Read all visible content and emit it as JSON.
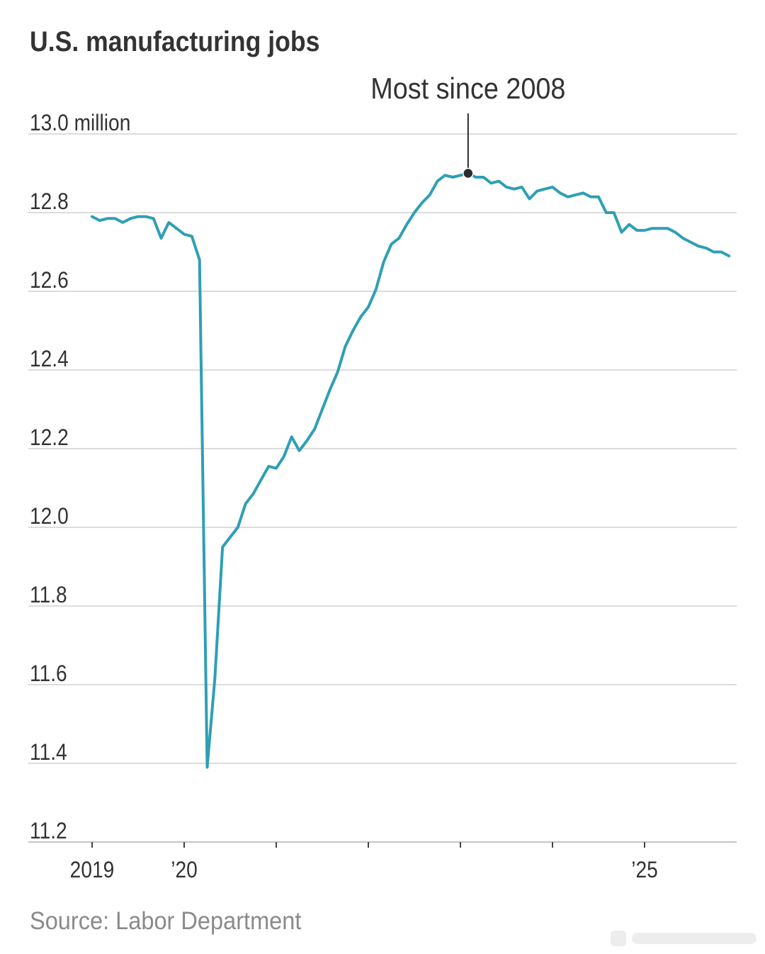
{
  "chart_data": {
    "type": "line",
    "title": "U.S. manufacturing jobs",
    "source": "Source: Labor Department",
    "grid": "horizontal",
    "ylim": [
      11.2,
      13.0
    ],
    "y_ticks": [
      {
        "value": 13.0,
        "label": "13.0 million"
      },
      {
        "value": 12.8,
        "label": "12.8"
      },
      {
        "value": 12.6,
        "label": "12.6"
      },
      {
        "value": 12.4,
        "label": "12.4"
      },
      {
        "value": 12.2,
        "label": "12.2"
      },
      {
        "value": 12.0,
        "label": "12.0"
      },
      {
        "value": 11.8,
        "label": "11.8"
      },
      {
        "value": 11.6,
        "label": "11.6"
      },
      {
        "value": 11.4,
        "label": "11.4"
      },
      {
        "value": 11.2,
        "label": "11.2"
      }
    ],
    "x_ticks": [
      {
        "value": "2019-01",
        "label": "2019"
      },
      {
        "value": "2020-01",
        "label": "’20"
      },
      {
        "value": "2021-01"
      },
      {
        "value": "2022-01"
      },
      {
        "value": "2023-01"
      },
      {
        "value": "2024-01"
      },
      {
        "value": "2025-01",
        "label": "’25"
      }
    ],
    "x": [
      "2019-01",
      "2019-02",
      "2019-03",
      "2019-04",
      "2019-05",
      "2019-06",
      "2019-07",
      "2019-08",
      "2019-09",
      "2019-10",
      "2019-11",
      "2019-12",
      "2020-01",
      "2020-02",
      "2020-03",
      "2020-04",
      "2020-05",
      "2020-06",
      "2020-07",
      "2020-08",
      "2020-09",
      "2020-10",
      "2020-11",
      "2020-12",
      "2021-01",
      "2021-02",
      "2021-03",
      "2021-04",
      "2021-05",
      "2021-06",
      "2021-07",
      "2021-08",
      "2021-09",
      "2021-10",
      "2021-11",
      "2021-12",
      "2022-01",
      "2022-02",
      "2022-03",
      "2022-04",
      "2022-05",
      "2022-06",
      "2022-07",
      "2022-08",
      "2022-09",
      "2022-10",
      "2022-11",
      "2022-12",
      "2023-01",
      "2023-02",
      "2023-03",
      "2023-04",
      "2023-05",
      "2023-06",
      "2023-07",
      "2023-08",
      "2023-09",
      "2023-10",
      "2023-11",
      "2023-12",
      "2024-01",
      "2024-02",
      "2024-03",
      "2024-04",
      "2024-05",
      "2024-06",
      "2024-07",
      "2024-08",
      "2024-09",
      "2024-10",
      "2024-11",
      "2024-12",
      "2025-01",
      "2025-02",
      "2025-03",
      "2025-04",
      "2025-05",
      "2025-06",
      "2025-07",
      "2025-08",
      "2025-09",
      "2025-10",
      "2025-11",
      "2025-12"
    ],
    "y": [
      12.79,
      12.78,
      12.785,
      12.785,
      12.775,
      12.785,
      12.79,
      12.79,
      12.785,
      12.735,
      12.775,
      12.76,
      12.745,
      12.74,
      12.68,
      11.39,
      11.615,
      11.95,
      11.975,
      12.0,
      12.06,
      12.085,
      12.12,
      12.155,
      12.15,
      12.18,
      12.23,
      12.195,
      12.22,
      12.25,
      12.3,
      12.35,
      12.395,
      12.46,
      12.5,
      12.535,
      12.56,
      12.605,
      12.675,
      12.72,
      12.735,
      12.77,
      12.8,
      12.825,
      12.845,
      12.88,
      12.895,
      12.89,
      12.895,
      12.9,
      12.89,
      12.89,
      12.875,
      12.88,
      12.865,
      12.86,
      12.865,
      12.835,
      12.855,
      12.86,
      12.865,
      12.85,
      12.84,
      12.845,
      12.85,
      12.84,
      12.84,
      12.8,
      12.8,
      12.75,
      12.77,
      12.755,
      12.755,
      12.76,
      12.76,
      12.76,
      12.75,
      12.735,
      12.725,
      12.715,
      12.71,
      12.7,
      12.7,
      12.69
    ],
    "annotations": [
      {
        "text": "Most since 2008",
        "x": "2023-02",
        "y": 12.9,
        "marker": "dot"
      }
    ],
    "colors": {
      "line": "#2e9fb5",
      "annotation": "#2b2b2b"
    }
  }
}
